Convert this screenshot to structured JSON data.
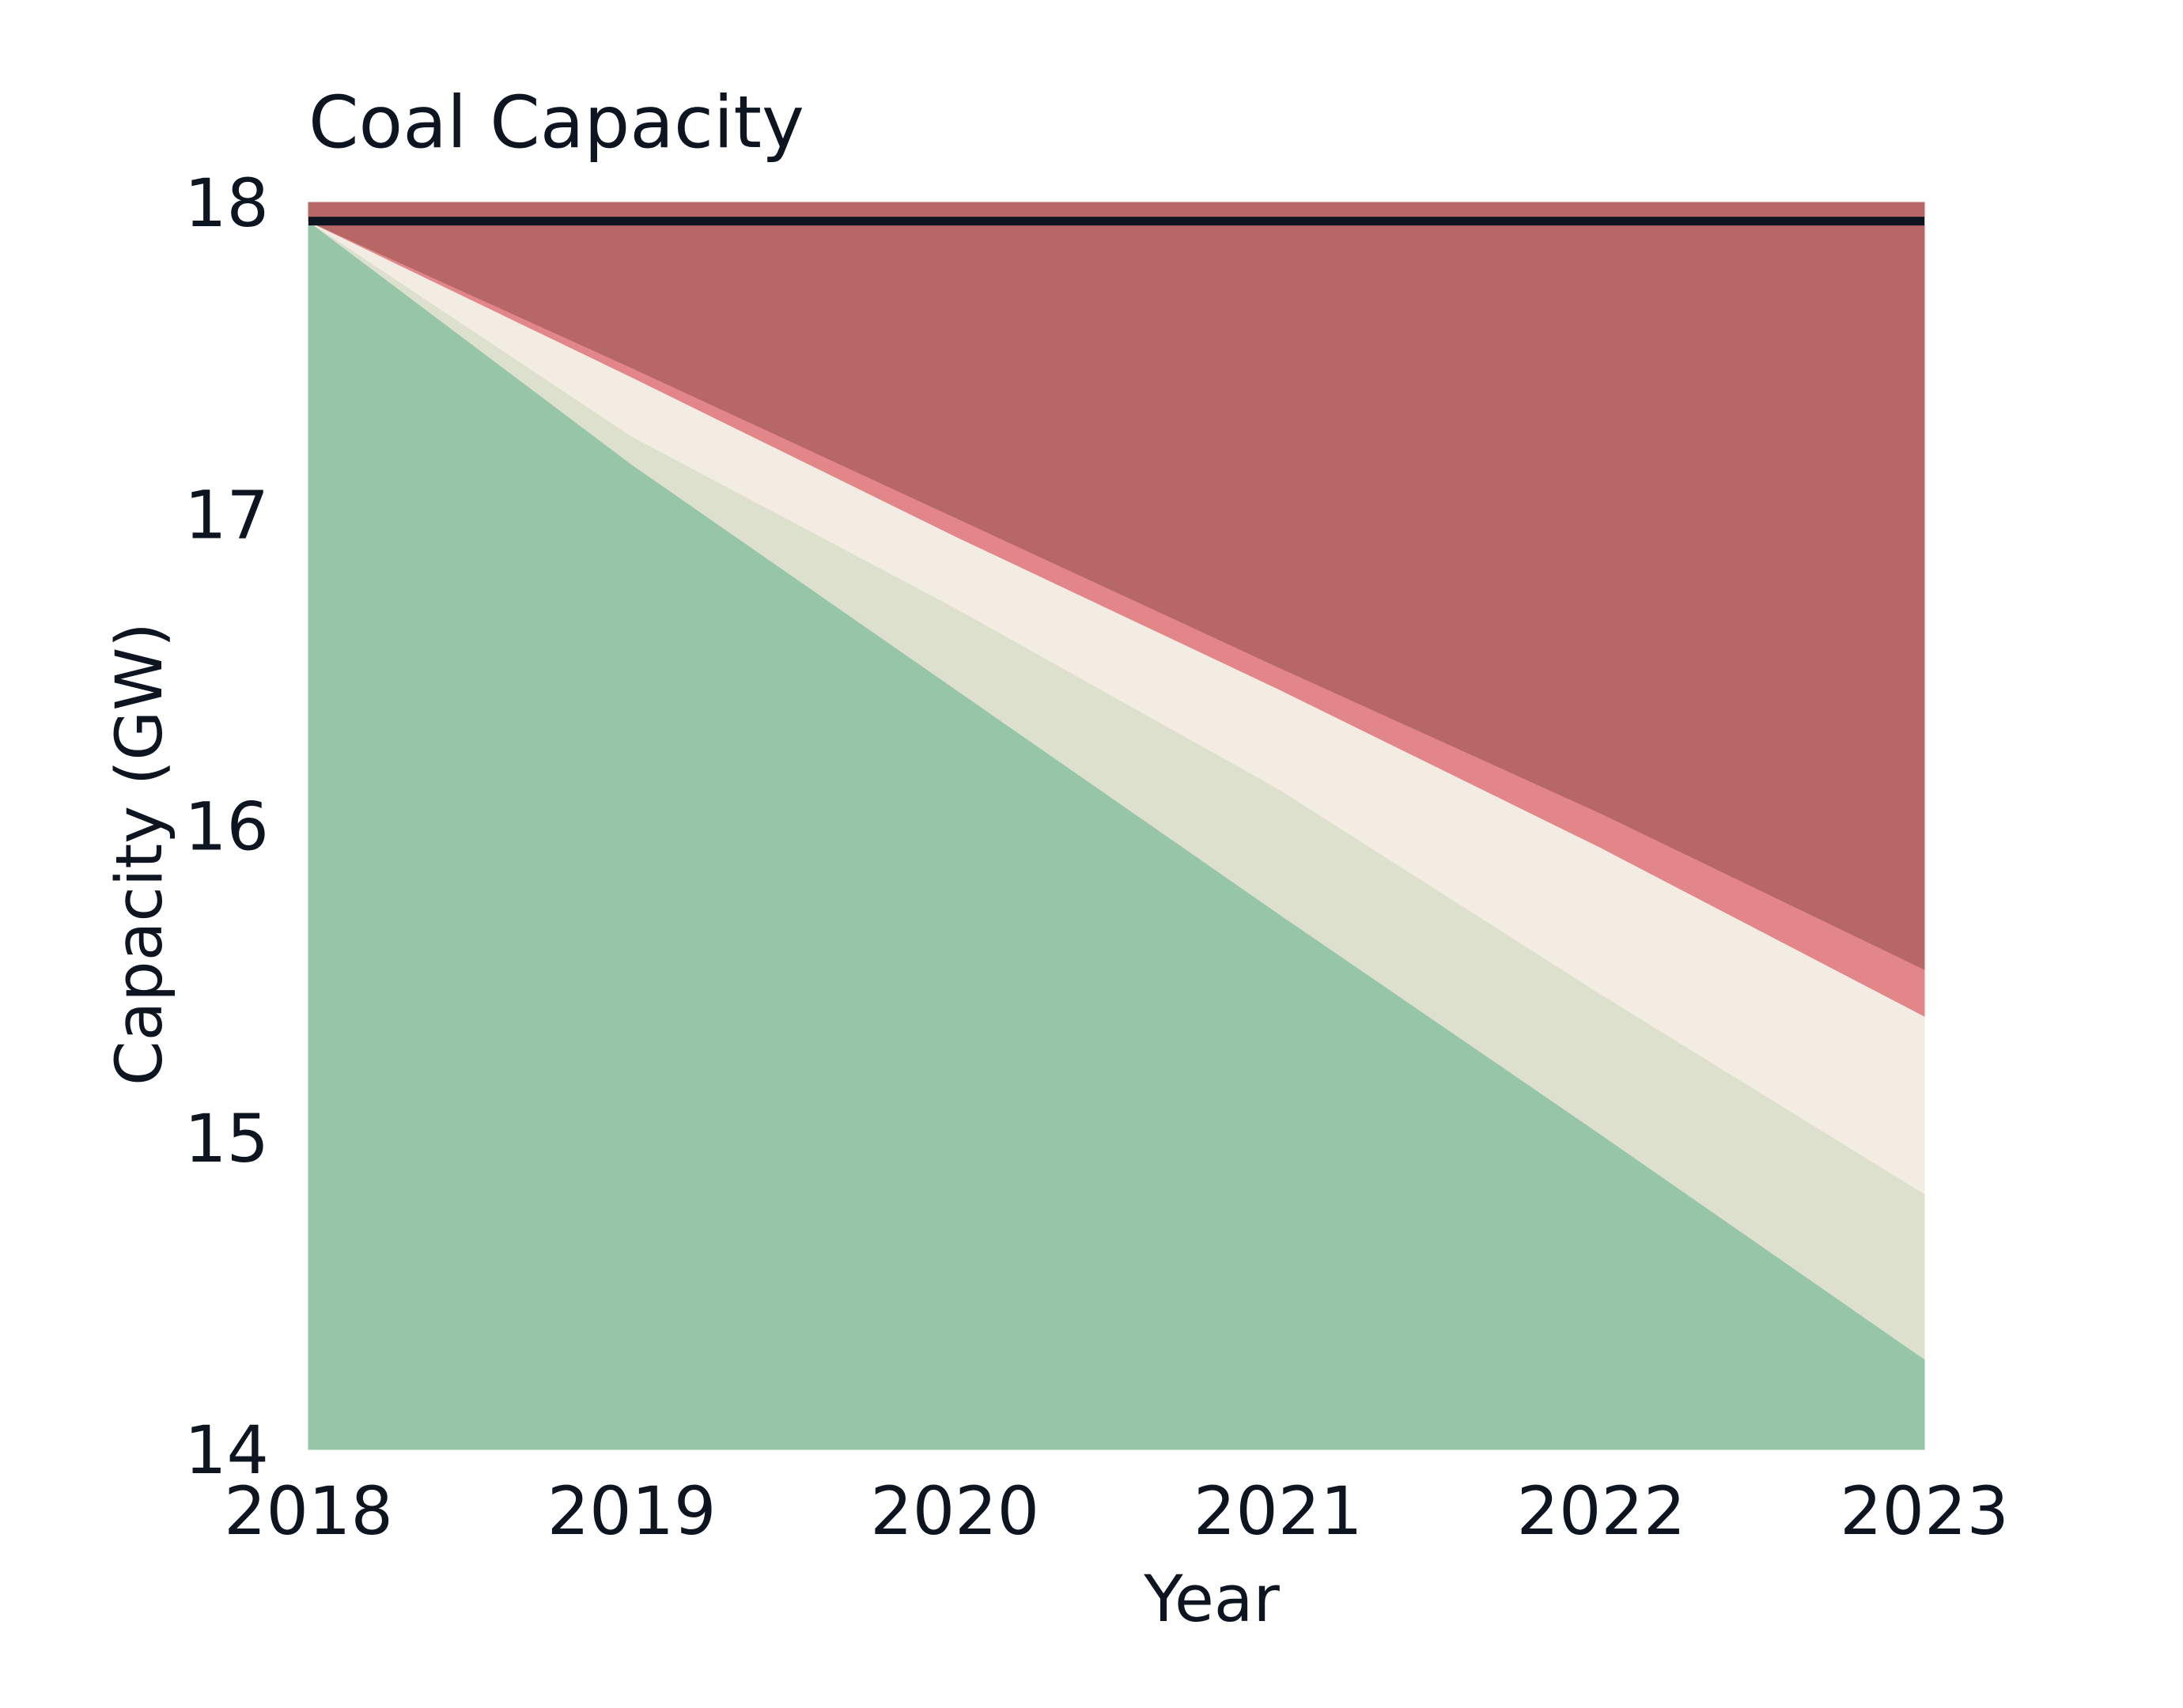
{
  "chart_data": {
    "type": "area",
    "title": "Coal Capacity",
    "xlabel": "Year",
    "ylabel": "Capacity (GW)",
    "xlim": [
      2018,
      2023
    ],
    "ylim": [
      14,
      18
    ],
    "x": [
      2018,
      2019,
      2020,
      2021,
      2022,
      2023
    ],
    "x_tick_labels": [
      "2018",
      "2019",
      "2020",
      "2021",
      "2022",
      "2023"
    ],
    "y_tick_labels": [
      "14",
      "15",
      "16",
      "17",
      "18"
    ],
    "y_ticks": [
      14,
      15,
      16,
      17,
      18
    ],
    "grid": false,
    "legend": "none",
    "bands": [
      {
        "lower": [
          14,
          14,
          14,
          14,
          14,
          14
        ],
        "upper": [
          17.94,
          17.16,
          16.44,
          15.72,
          15.01,
          14.29
        ],
        "color": "#96c5a8"
      },
      {
        "lower": [
          17.94,
          17.16,
          16.44,
          15.72,
          15.01,
          14.29
        ],
        "upper": [
          17.94,
          17.25,
          16.7,
          16.12,
          15.46,
          14.82
        ],
        "color": "#dde0cd"
      },
      {
        "lower": [
          17.94,
          17.25,
          16.7,
          16.12,
          15.46,
          14.82
        ],
        "upper": [
          17.94,
          17.44,
          16.93,
          16.44,
          15.93,
          15.39
        ],
        "color": "#f3ece2"
      },
      {
        "lower": [
          17.94,
          17.44,
          16.93,
          16.44,
          15.93,
          15.39
        ],
        "upper": [
          17.94,
          17.47,
          16.99,
          16.51,
          16.04,
          15.54
        ],
        "color": "#e2868a"
      },
      {
        "lower": [
          17.94,
          17.47,
          16.99,
          16.51,
          16.04,
          15.54
        ],
        "upper": [
          18,
          18,
          18,
          18,
          18,
          18
        ],
        "color": "#b86767"
      }
    ],
    "reference_line": {
      "y": 17.94,
      "color": "#0d1620"
    }
  }
}
